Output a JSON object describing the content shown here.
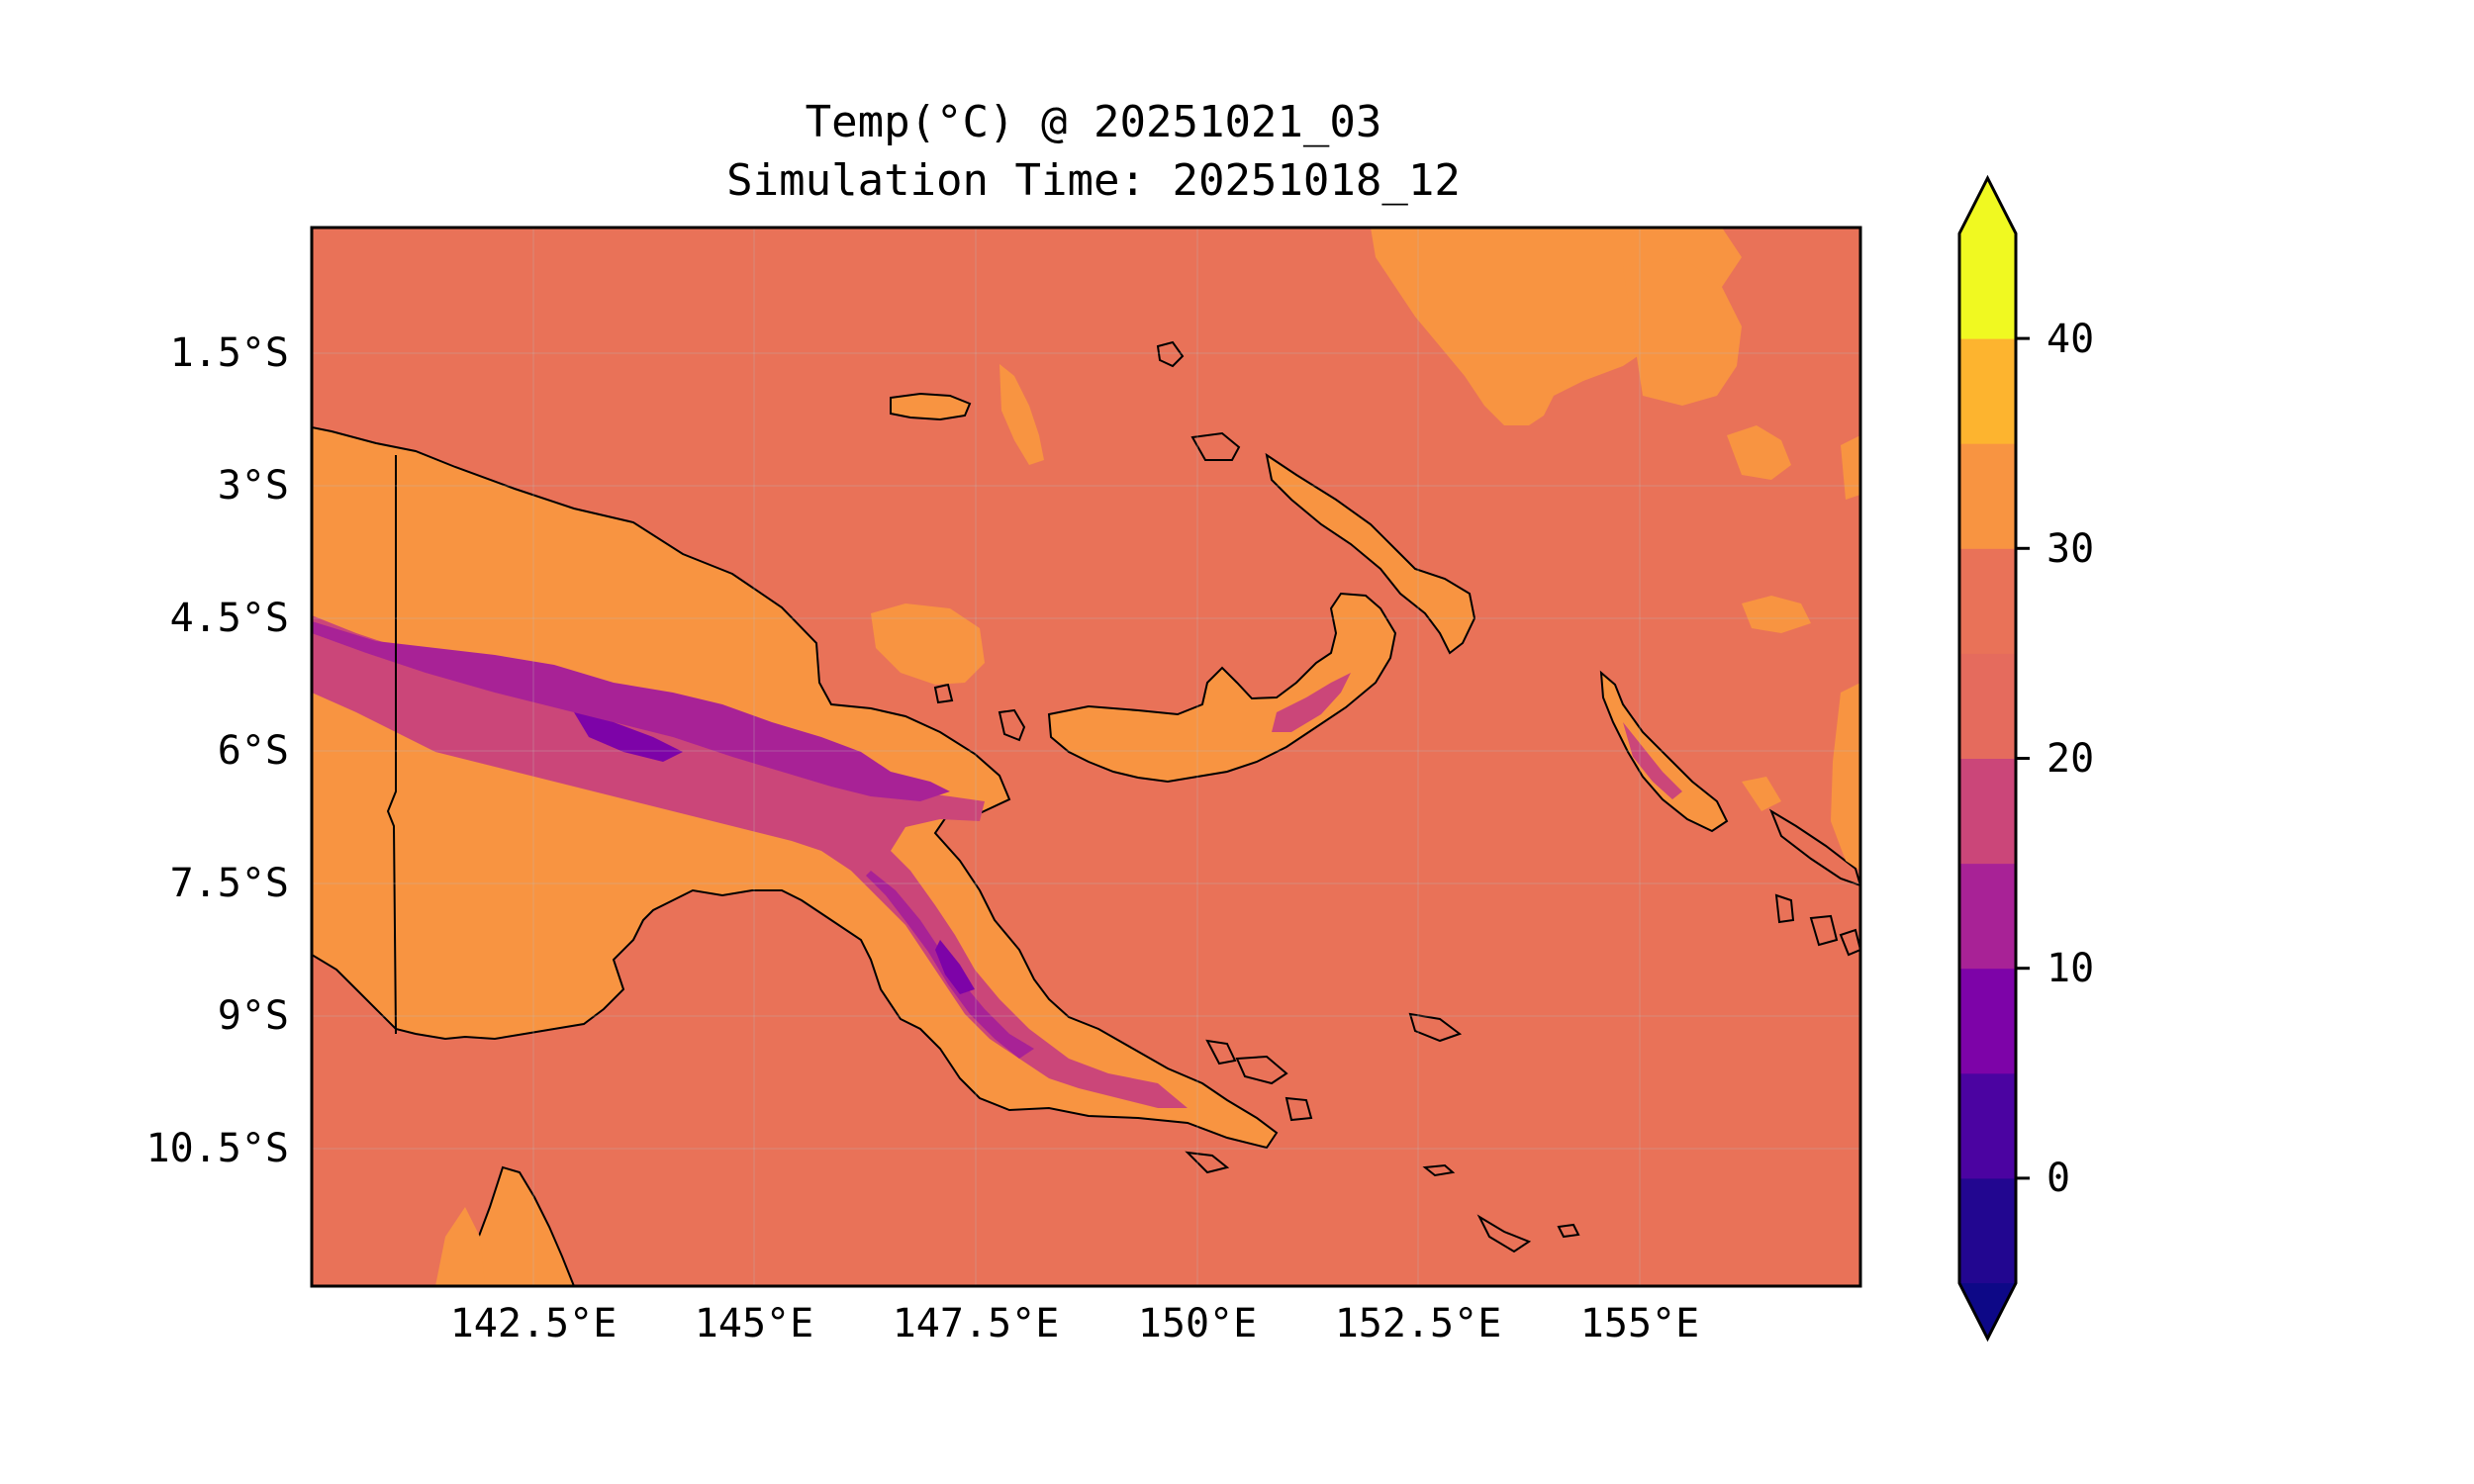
{
  "title": "Temp(°C) @ 20251021_03",
  "subtitle": "Simulation Time: 20251018_12",
  "map": {
    "lat_ticks": [
      "1.5°S",
      "3°S",
      "4.5°S",
      "6°S",
      "7.5°S",
      "9°S",
      "10.5°S"
    ],
    "lon_ticks": [
      "142.5°E",
      "145°E",
      "147.5°E",
      "150°E",
      "152.5°E",
      "155°E"
    ],
    "lon_range": [
      140.0,
      157.5
    ],
    "lat_range": [
      -12.0,
      -0.1
    ],
    "ocean_color": "#e97258"
  },
  "colorbar": {
    "levels": [
      -5,
      0,
      5,
      10,
      15,
      20,
      25,
      30,
      35,
      40,
      45
    ],
    "tick_labels": [
      "0",
      "10",
      "20",
      "30",
      "40"
    ],
    "colors": [
      "#220690",
      "#4b03a1",
      "#7d03a8",
      "#a82296",
      "#cb4679",
      "#e56b5d",
      "#e97258",
      "#f89441",
      "#fdb42f",
      "#f0f921"
    ],
    "under_color": "#0d0887",
    "over_color": "#f0f921",
    "extend": "both"
  }
}
